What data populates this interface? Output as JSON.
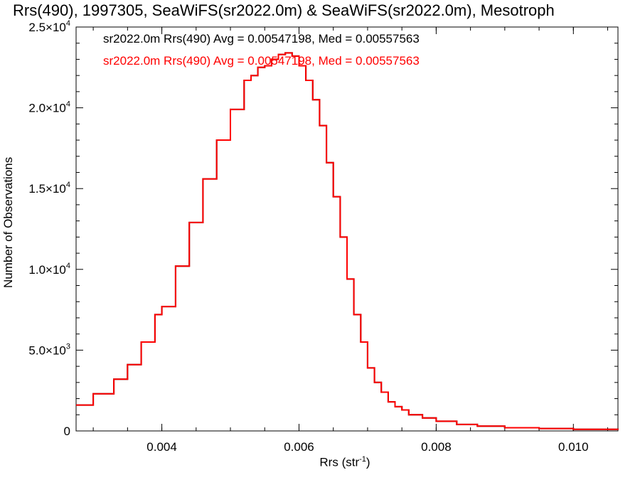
{
  "chart_data": {
    "type": "line",
    "title": "Rrs(490), 1997305, SeaWiFS(sr2022.0m) & SeaWiFS(sr2022.0m), Mesotroph",
    "xlabel": "Rrs (str",
    "xlabel_sup": "-1",
    "xlabel_suffix": ")",
    "ylabel": "Number of Observations",
    "xlim": [
      0.00275,
      0.01065
    ],
    "ylim": [
      0,
      25000
    ],
    "x_ticks": [
      {
        "value": 0.004,
        "label": "0.004"
      },
      {
        "value": 0.006,
        "label": "0.006"
      },
      {
        "value": 0.008,
        "label": "0.008"
      },
      {
        "value": 0.01,
        "label": "0.010"
      }
    ],
    "y_ticks": [
      {
        "value": 0,
        "base": "0",
        "exp": ""
      },
      {
        "value": 5000,
        "base": "5.0×10",
        "exp": "3"
      },
      {
        "value": 10000,
        "base": "1.0×10",
        "exp": "4"
      },
      {
        "value": 15000,
        "base": "1.5×10",
        "exp": "4"
      },
      {
        "value": 20000,
        "base": "2.0×10",
        "exp": "4"
      },
      {
        "value": 25000,
        "base": "2.5×10",
        "exp": "4"
      }
    ],
    "legend_position": "top-left",
    "series": [
      {
        "name": "sr2022.0m Rrs(490) Avg = 0.00547198, Med = 0.00557563",
        "color": "#000000",
        "x": [
          0.00275,
          0.003,
          0.0033,
          0.0035,
          0.0037,
          0.0039,
          0.004,
          0.0042,
          0.0044,
          0.0046,
          0.0048,
          0.005,
          0.0052,
          0.0053,
          0.0054,
          0.0055,
          0.0056,
          0.0057,
          0.0058,
          0.0059,
          0.006,
          0.0061,
          0.0062,
          0.0063,
          0.0064,
          0.0065,
          0.0066,
          0.0067,
          0.0068,
          0.0069,
          0.007,
          0.0071,
          0.0072,
          0.0073,
          0.0074,
          0.0075,
          0.0076,
          0.0078,
          0.008,
          0.0083,
          0.0086,
          0.009,
          0.0095,
          0.01,
          0.01065
        ],
        "values": [
          1600,
          2300,
          3200,
          4100,
          5500,
          7200,
          7700,
          10200,
          12900,
          15600,
          18000,
          19900,
          21700,
          22000,
          22500,
          22600,
          23000,
          23300,
          23400,
          23200,
          22600,
          21700,
          20500,
          18900,
          16600,
          14500,
          12000,
          9400,
          7200,
          5500,
          3900,
          3000,
          2400,
          1800,
          1500,
          1300,
          1000,
          800,
          600,
          400,
          300,
          200,
          150,
          100,
          70
        ]
      },
      {
        "name": "sr2022.0m Rrs(490) Avg = 0.00547198, Med = 0.00557563",
        "color": "#ff0000",
        "x": [
          0.00275,
          0.003,
          0.0033,
          0.0035,
          0.0037,
          0.0039,
          0.004,
          0.0042,
          0.0044,
          0.0046,
          0.0048,
          0.005,
          0.0052,
          0.0053,
          0.0054,
          0.0055,
          0.0056,
          0.0057,
          0.0058,
          0.0059,
          0.006,
          0.0061,
          0.0062,
          0.0063,
          0.0064,
          0.0065,
          0.0066,
          0.0067,
          0.0068,
          0.0069,
          0.007,
          0.0071,
          0.0072,
          0.0073,
          0.0074,
          0.0075,
          0.0076,
          0.0078,
          0.008,
          0.0083,
          0.0086,
          0.009,
          0.0095,
          0.01,
          0.01065
        ],
        "values": [
          1600,
          2300,
          3200,
          4100,
          5500,
          7200,
          7700,
          10200,
          12900,
          15600,
          18000,
          19900,
          21700,
          22000,
          22500,
          22600,
          23000,
          23300,
          23400,
          23200,
          22600,
          21700,
          20500,
          18900,
          16600,
          14500,
          12000,
          9400,
          7200,
          5500,
          3900,
          3000,
          2400,
          1800,
          1500,
          1300,
          1000,
          800,
          600,
          400,
          300,
          200,
          150,
          100,
          70
        ]
      }
    ]
  }
}
